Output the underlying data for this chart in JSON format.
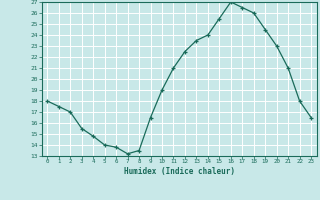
{
  "x": [
    0,
    1,
    2,
    3,
    4,
    5,
    6,
    7,
    8,
    9,
    10,
    11,
    12,
    13,
    14,
    15,
    16,
    17,
    18,
    19,
    20,
    21,
    22,
    23
  ],
  "y": [
    18.0,
    17.5,
    17.0,
    15.5,
    14.8,
    14.0,
    13.8,
    13.2,
    13.5,
    16.5,
    19.0,
    21.0,
    22.5,
    23.5,
    24.0,
    25.5,
    27.0,
    26.5,
    26.0,
    24.5,
    23.0,
    21.0,
    18.0,
    16.5
  ],
  "xlabel": "Humidex (Indice chaleur)",
  "ylim": [
    13,
    27
  ],
  "xlim": [
    -0.5,
    23.5
  ],
  "yticks": [
    13,
    14,
    15,
    16,
    17,
    18,
    19,
    20,
    21,
    22,
    23,
    24,
    25,
    26,
    27
  ],
  "xticks": [
    0,
    1,
    2,
    3,
    4,
    5,
    6,
    7,
    8,
    9,
    10,
    11,
    12,
    13,
    14,
    15,
    16,
    17,
    18,
    19,
    20,
    21,
    22,
    23
  ],
  "line_color": "#1a6b5a",
  "marker": "+",
  "bg_color": "#c8e8e8",
  "grid_color": "#ffffff",
  "label_color": "#1a6b5a",
  "spine_color": "#1a6b5a"
}
